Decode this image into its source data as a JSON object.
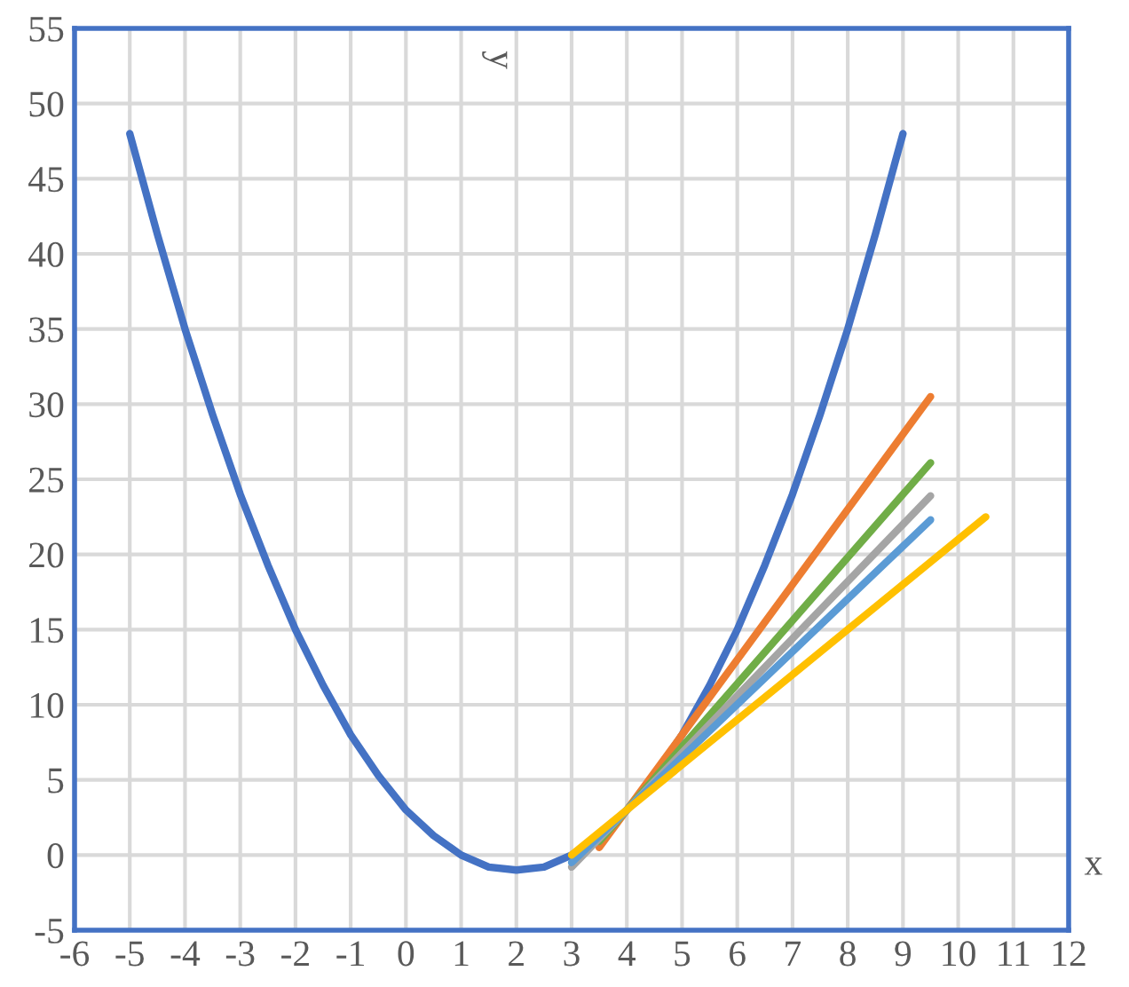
{
  "chart_data": {
    "type": "line",
    "xlabel": "x",
    "ylabel": "y",
    "xlim": [
      -6,
      12
    ],
    "ylim": [
      -5,
      55
    ],
    "xticks": [
      -6,
      -5,
      -4,
      -3,
      -2,
      -1,
      0,
      1,
      2,
      3,
      4,
      5,
      6,
      7,
      8,
      9,
      10,
      11,
      12
    ],
    "yticks": [
      -5,
      0,
      5,
      10,
      15,
      20,
      25,
      30,
      35,
      40,
      45,
      50,
      55
    ],
    "grid": true,
    "legend": false,
    "marker": "none",
    "line_style": "solid",
    "series": [
      {
        "color": "#4472c4",
        "x": [
          -5,
          -4.5,
          -4,
          -3.5,
          -3,
          -2.5,
          -2,
          -1.5,
          -1,
          -0.5,
          0,
          0.5,
          1,
          1.5,
          2,
          2.5,
          3,
          3.5,
          4,
          4.5,
          5,
          5.5,
          6,
          6.5,
          7,
          7.5,
          8,
          8.5,
          9
        ],
        "values": [
          48,
          41.3,
          35,
          29.3,
          24,
          19.3,
          15,
          11.3,
          8,
          5.3,
          3,
          1.3,
          0,
          -0.8,
          -1,
          -0.8,
          0,
          1.3,
          3,
          5.3,
          8,
          11.3,
          15,
          19.3,
          24,
          29.3,
          35,
          41.3,
          48
        ]
      },
      {
        "color": "#ed7d31",
        "x": [
          3.5,
          9.5
        ],
        "values": [
          0.5,
          30.5
        ]
      },
      {
        "color": "#70ad47",
        "x": [
          3.5,
          9.5
        ],
        "values": [
          0.9,
          26.1
        ]
      },
      {
        "color": "#a5a5a5",
        "x": [
          3,
          9.5
        ],
        "values": [
          -0.8,
          23.9
        ]
      },
      {
        "color": "#5b9bd5",
        "x": [
          3,
          9.5
        ],
        "values": [
          -0.5,
          22.3
        ]
      },
      {
        "color": "#ffc000",
        "x": [
          3,
          10.5
        ],
        "values": [
          0,
          22.5
        ]
      }
    ]
  }
}
